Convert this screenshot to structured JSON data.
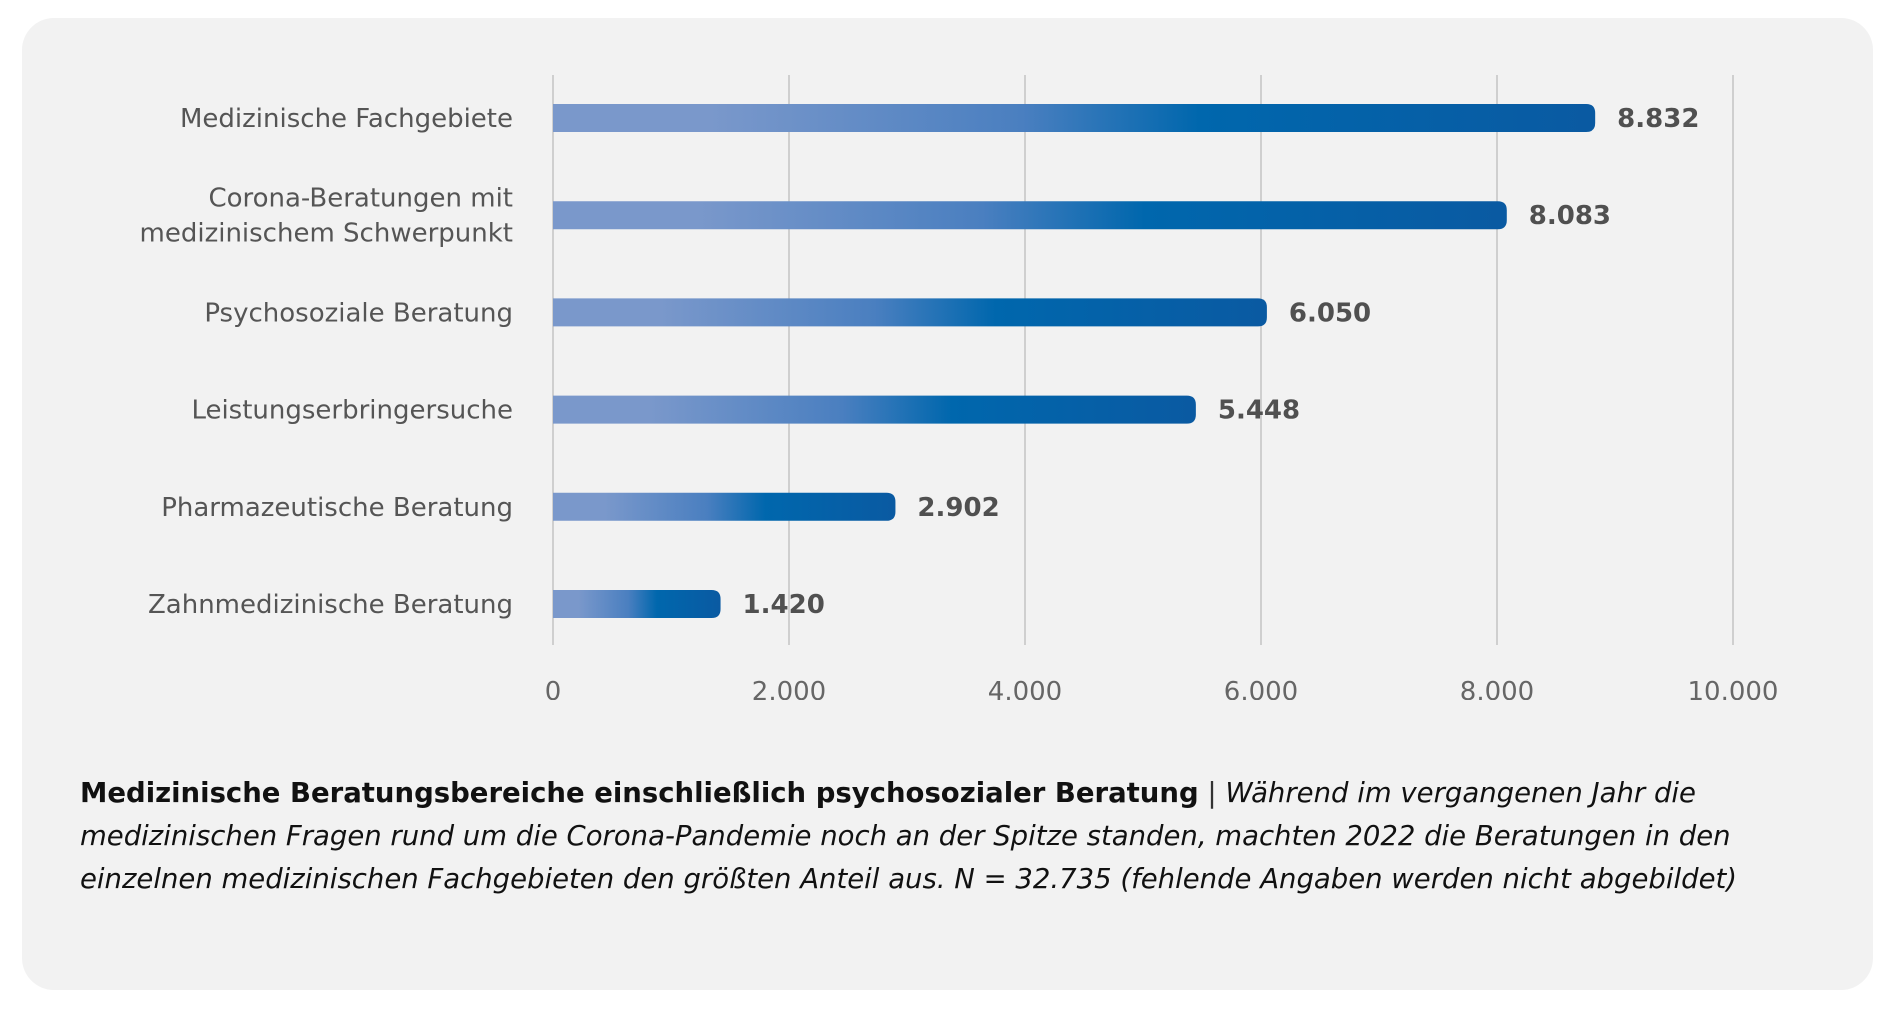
{
  "chart_data": {
    "type": "bar",
    "orientation": "horizontal",
    "categories": [
      [
        "Medizinische Fachgebiete"
      ],
      [
        "Corona-Beratungen mit",
        "medizinischem Schwerpunkt"
      ],
      [
        "Psychosoziale Beratung"
      ],
      [
        "Leistungserbringersuche"
      ],
      [
        "Pharmazeutische Beratung"
      ],
      [
        "Zahnmedizinische Beratung"
      ]
    ],
    "values": [
      8832,
      8083,
      6050,
      5448,
      2902,
      1420
    ],
    "value_labels": [
      "8.832",
      "8.083",
      "6.050",
      "5.448",
      "2.902",
      "1.420"
    ],
    "xlim": [
      0,
      10000
    ],
    "xticks": [
      0,
      2000,
      4000,
      6000,
      8000,
      10000
    ],
    "xtick_labels": [
      "0",
      "2.000",
      "4.000",
      "6.000",
      "8.000",
      "10.000"
    ],
    "grid": true,
    "colors": {
      "bar_start": "#7a98cb",
      "bar_mid": "#4a7fc0",
      "bar_end": "#0a5aa2",
      "grid": "#cfcfcf"
    }
  },
  "caption": {
    "title": "Medizinische Beratungsbereiche einschließlich psychosozialer Beratung",
    "separator": "|",
    "text": "Während im vergangenen Jahr die medizinischen Fragen rund um die Corona-Pandemie noch an der Spitze standen, machten 2022 die Beratungen in den einzelnen medizinischen Fachgebieten den größten Anteil aus. N = 32.735 (fehlende Angaben werden nicht abgebildet)"
  }
}
